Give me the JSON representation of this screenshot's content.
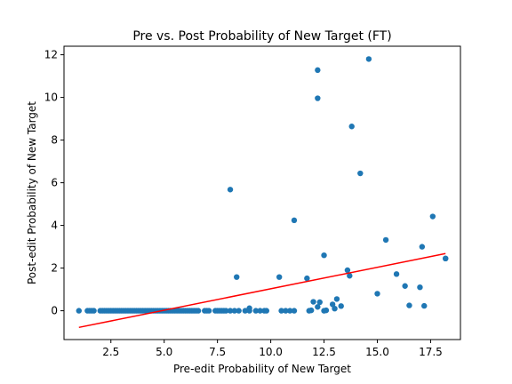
{
  "chart_data": {
    "type": "scatter",
    "title": "Pre vs. Post Probability of New Target (FT)",
    "xlabel": "Pre-edit Probability of New Target",
    "ylabel": "Post-edit Probability of New Target",
    "xlim": [
      0.3,
      18.9
    ],
    "ylim": [
      -1.35,
      12.4
    ],
    "xticks": [
      2.5,
      5.0,
      7.5,
      10.0,
      12.5,
      15.0,
      17.5
    ],
    "xtick_labels": [
      "2.5",
      "5.0",
      "7.5",
      "10.0",
      "12.5",
      "15.0",
      "17.5"
    ],
    "yticks": [
      0,
      2,
      4,
      6,
      8,
      10,
      12
    ],
    "ytick_labels": [
      "0",
      "2",
      "4",
      "6",
      "8",
      "10",
      "12"
    ],
    "grid": false,
    "point_color": "#1f77b4",
    "line_color": "#ff0000",
    "trend_line": {
      "x": [
        1.0,
        18.2
      ],
      "y": [
        -0.78,
        2.68
      ]
    },
    "points": {
      "x": [
        1.0,
        1.4,
        1.5,
        1.6,
        1.7,
        2.0,
        2.1,
        2.2,
        2.3,
        2.4,
        2.5,
        2.6,
        2.7,
        2.8,
        2.9,
        3.0,
        3.1,
        3.2,
        3.3,
        3.4,
        3.5,
        3.6,
        3.7,
        3.8,
        3.9,
        4.0,
        4.1,
        4.2,
        4.3,
        4.4,
        4.5,
        4.6,
        4.7,
        4.8,
        4.9,
        5.0,
        5.1,
        5.2,
        5.3,
        5.4,
        5.5,
        5.6,
        5.7,
        5.8,
        5.9,
        6.0,
        6.1,
        6.2,
        6.3,
        6.4,
        6.5,
        6.6,
        6.9,
        7.0,
        7.1,
        7.4,
        7.5,
        7.6,
        7.7,
        7.8,
        7.9,
        8.1,
        8.3,
        8.5,
        8.8,
        9.0,
        9.3,
        9.5,
        9.7,
        9.8,
        10.5,
        10.7,
        10.9,
        11.1,
        11.8,
        12.5,
        8.1,
        8.4,
        9.0,
        10.4,
        11.1,
        11.7,
        11.9,
        12.0,
        12.2,
        12.2,
        12.2,
        12.3,
        12.5,
        12.6,
        12.9,
        13.0,
        13.1,
        13.3,
        13.6,
        13.7,
        13.8,
        14.2,
        14.6,
        15.0,
        15.4,
        15.9,
        16.3,
        16.5,
        17.0,
        17.1,
        17.2,
        17.6,
        18.2,
        18.2
      ],
      "y": [
        0,
        0,
        0,
        0,
        0,
        0,
        0,
        0,
        0,
        0,
        0,
        0,
        0,
        0,
        0,
        0,
        0,
        0,
        0,
        0,
        0,
        0,
        0,
        0,
        0,
        0,
        0,
        0,
        0,
        0,
        0,
        0,
        0,
        0,
        0,
        0,
        0,
        0,
        0,
        0,
        0,
        0,
        0,
        0,
        0,
        0,
        0,
        0,
        0,
        0,
        0,
        0,
        0,
        0,
        0,
        0,
        0,
        0,
        0,
        0,
        0,
        0,
        0,
        0,
        0,
        0,
        0,
        0,
        0,
        0,
        0,
        0,
        0,
        0,
        0,
        0,
        5.68,
        1.58,
        0.12,
        1.58,
        4.24,
        1.52,
        0.02,
        0.42,
        11.28,
        9.96,
        0.18,
        0.4,
        2.6,
        0.02,
        0.3,
        0.1,
        0.55,
        0.22,
        1.9,
        1.64,
        8.64,
        6.44,
        11.8,
        0.8,
        3.32,
        1.72,
        1.16,
        0.25,
        1.1,
        3.0,
        0.23,
        4.42,
        2.45,
        2.45
      ]
    }
  }
}
